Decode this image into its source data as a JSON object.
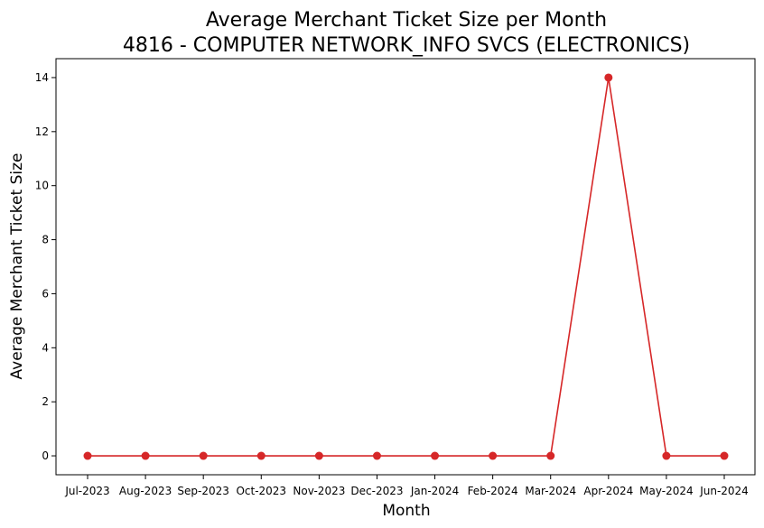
{
  "chart_data": {
    "type": "line",
    "title_line1": "Average Merchant Ticket Size per Month",
    "title_line2": "4816 - COMPUTER NETWORK_INFO SVCS (ELECTRONICS)",
    "xlabel": "Month",
    "ylabel": "Average Merchant Ticket Size",
    "categories": [
      "Jul-2023",
      "Aug-2023",
      "Sep-2023",
      "Oct-2023",
      "Nov-2023",
      "Dec-2023",
      "Jan-2024",
      "Feb-2024",
      "Mar-2024",
      "Apr-2024",
      "May-2024",
      "Jun-2024"
    ],
    "values": [
      0,
      0,
      0,
      0,
      0,
      0,
      0,
      0,
      0,
      14,
      0,
      0
    ],
    "yticks": [
      0,
      2,
      4,
      6,
      8,
      10,
      12,
      14
    ],
    "ylim": [
      -0.7,
      14.7
    ],
    "grid": false,
    "legend": "none",
    "line_color": "#d62728"
  }
}
